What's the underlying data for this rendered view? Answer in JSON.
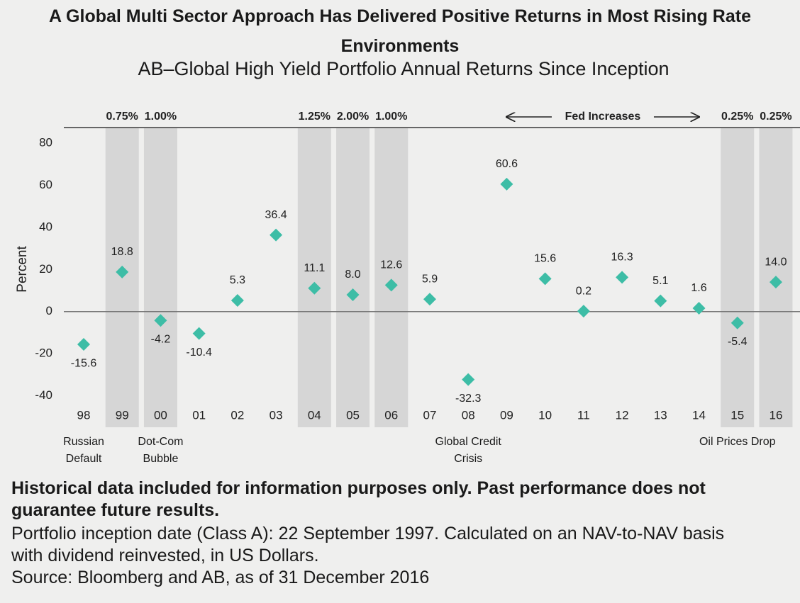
{
  "chart_data": {
    "type": "scatter",
    "title": "A Global Multi Sector Approach Has Delivered Positive Returns in Most Rising Rate Environments",
    "subtitle": "AB–Global High Yield Portfolio Annual Returns Since Inception",
    "y_label": "Percent",
    "categories": [
      "98",
      "99",
      "00",
      "01",
      "02",
      "03",
      "04",
      "05",
      "06",
      "07",
      "08",
      "09",
      "10",
      "11",
      "12",
      "13",
      "14",
      "15",
      "16"
    ],
    "values": [
      -15.6,
      18.8,
      -4.2,
      -10.4,
      5.3,
      36.4,
      11.1,
      8.0,
      12.6,
      5.9,
      -32.3,
      60.6,
      15.6,
      0.2,
      16.3,
      5.1,
      1.6,
      -5.4,
      14.0
    ],
    "value_labels": [
      "-15.6",
      "18.8",
      "-4.2",
      "-10.4",
      "5.3",
      "36.4",
      "11.1",
      "8.0",
      "12.6",
      "5.9",
      "-32.3",
      "60.6",
      "15.6",
      "0.2",
      "16.3",
      "5.1",
      "1.6",
      "-5.4",
      "14.0"
    ],
    "color": "#3dbda6",
    "highlight_color": "#d6d6d6",
    "ylim": [
      -55,
      87.5
    ],
    "yticks": [
      -40,
      -20,
      0,
      20,
      40,
      60,
      80
    ],
    "highlights": [
      {
        "category": "99",
        "label": "0.75%"
      },
      {
        "category": "00",
        "label": "1.00%"
      },
      {
        "category": "04",
        "label": "1.25%"
      },
      {
        "category": "05",
        "label": "2.00%"
      },
      {
        "category": "06",
        "label": "1.00%"
      },
      {
        "category": "15",
        "label": "0.25%"
      },
      {
        "category": "16",
        "label": "0.25%"
      }
    ],
    "range_annotation": {
      "text": "Fed Increases",
      "from": "09",
      "to": "14"
    },
    "annotations": [
      {
        "category": "98",
        "text": "Russian Default"
      },
      {
        "category": "00",
        "text": "Dot-Com Bubble"
      },
      {
        "category": "08",
        "text": "Global Credit Crisis"
      },
      {
        "category": "15",
        "text": "Oil Prices Drop"
      }
    ],
    "disclaimer": "Historical data included for information purposes only. Past performance does not guarantee future results.",
    "notes": [
      "Portfolio inception date (Class A): 22 September 1997. Calculated on an NAV-to-NAV basis with dividend reinvested, in US Dollars.",
      "Source: Bloomberg and AB, as of 31 December 2016"
    ]
  }
}
